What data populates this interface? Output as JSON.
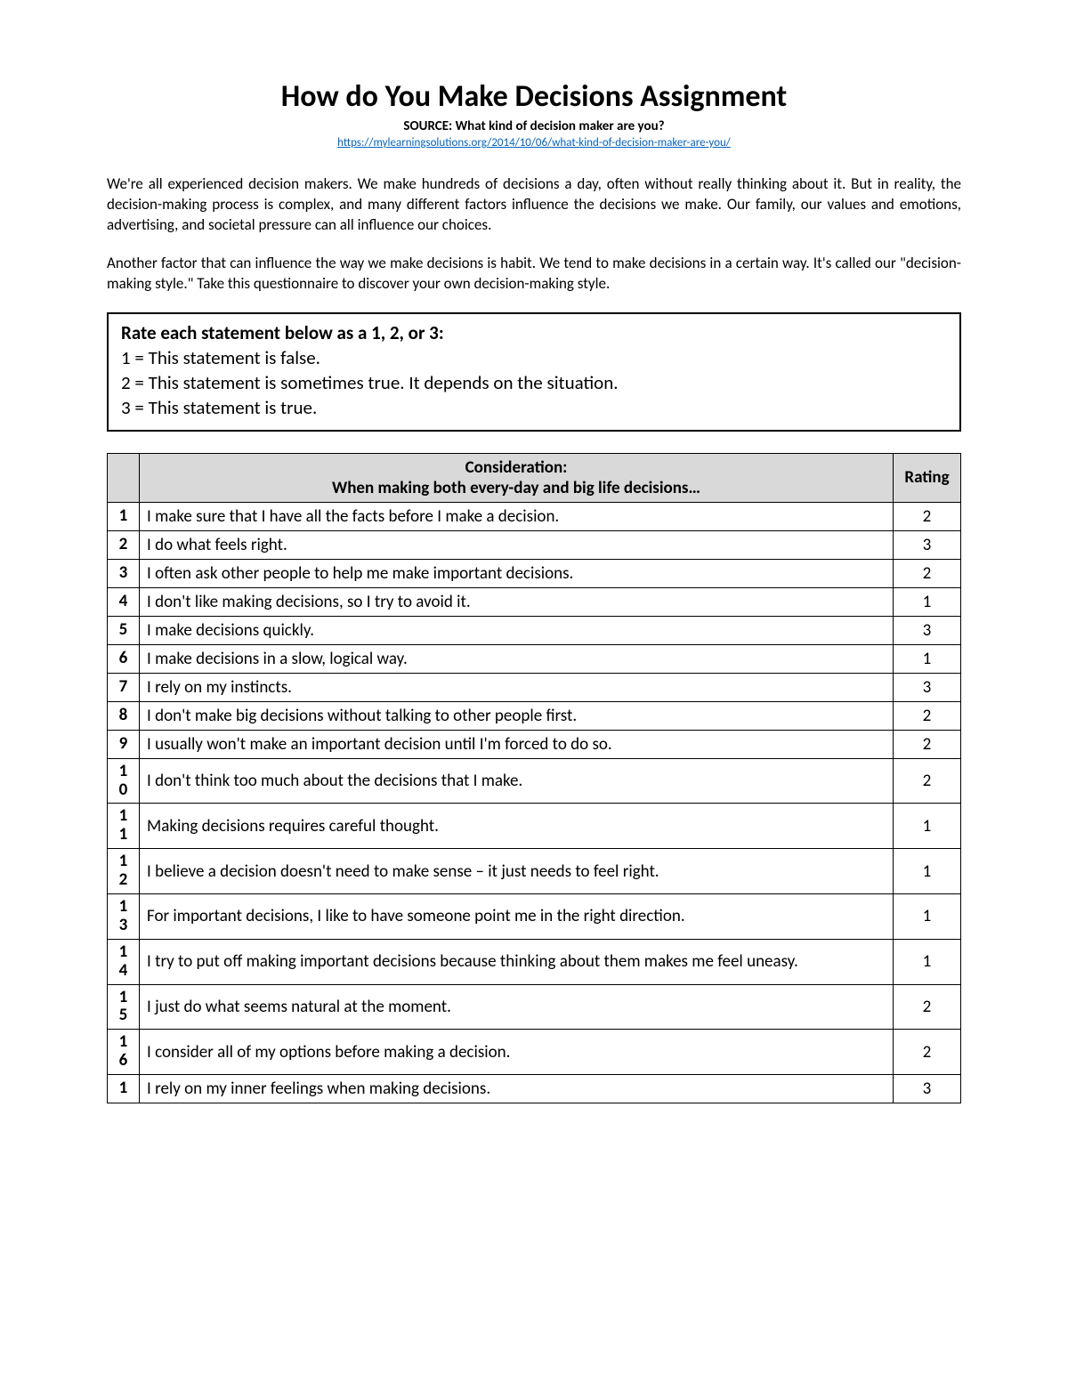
{
  "title": "How do You Make Decisions Assignment",
  "source_label": "SOURCE: What kind of decision maker are you?",
  "source_url": "https://mylearningsolutions.org/2014/10/06/what-kind-of-decision-maker-are-you/",
  "paragraph1": "We're all experienced decision makers.  We make hundreds of decisions a day, often without really thinking about it.  But in reality, the decision-making process is complex, and many different factors influence the decisions we make.  Our family, our values and emotions, advertising, and societal pressure can all influence our choices.",
  "paragraph2": "Another factor that can influence the way we make decisions is habit.  We tend to make decisions in a certain way.  It's called our \"decision-making style.\"  Take this questionnaire to discover your own decision-making style.",
  "instructions": {
    "heading": "Rate each statement below as a 1, 2, or 3:",
    "lines": [
      "1 = This statement is false.",
      "2 = This statement is sometimes true. It depends on the situation.",
      "3 = This statement is true."
    ]
  },
  "table": {
    "header": {
      "num": "",
      "consideration_line1": "Consideration:",
      "consideration_line2": "When making both every-day and big life decisions…",
      "rating": "Rating"
    },
    "rows": [
      {
        "n": "1",
        "text": "I make sure that I have all the facts before I make a decision.",
        "rating": "2"
      },
      {
        "n": "2",
        "text": "I do what feels right.",
        "rating": "3"
      },
      {
        "n": "3",
        "text": "I often ask other people to help me make important decisions.",
        "rating": "2"
      },
      {
        "n": "4",
        "text": "I don't like making decisions, so I try to avoid it.",
        "rating": "1"
      },
      {
        "n": "5",
        "text": "I make decisions quickly.",
        "rating": "3"
      },
      {
        "n": "6",
        "text": "I make decisions in a slow, logical way.",
        "rating": "1"
      },
      {
        "n": "7",
        "text": "I rely on my instincts.",
        "rating": "3"
      },
      {
        "n": "8",
        "text": "I don't make big decisions without talking to other people first.",
        "rating": "2"
      },
      {
        "n": "9",
        "text": "I usually won't make an important decision until I'm forced to do so.",
        "rating": "2"
      },
      {
        "n": "10",
        "text": "I don't think too much about the decisions that I make.",
        "rating": "2"
      },
      {
        "n": "11",
        "text": "Making decisions requires careful thought.",
        "rating": "1"
      },
      {
        "n": "12",
        "text": "I believe a decision doesn't need to make sense – it just needs to feel right.",
        "rating": "1"
      },
      {
        "n": "13",
        "text": "For important decisions, I like to have someone point me in the right direction.",
        "rating": "1"
      },
      {
        "n": "14",
        "text": "I try to put off making important decisions because thinking about them makes me feel uneasy.",
        "rating": "1"
      },
      {
        "n": "15",
        "text": "I just do what seems natural at the moment.",
        "rating": "2"
      },
      {
        "n": "16",
        "text": "I consider all of my options before making a decision.",
        "rating": "2"
      },
      {
        "n": "1",
        "text": "I rely on my inner feelings when making decisions.",
        "rating": "3"
      }
    ]
  },
  "colors": {
    "header_bg": "#d9d9d9",
    "border": "#000000",
    "link": "#0563c1",
    "text": "#000000",
    "background": "#ffffff"
  },
  "fontsizes": {
    "title": 34,
    "source": 15,
    "link": 13,
    "body": 17,
    "instructions": 21,
    "table": 19
  }
}
